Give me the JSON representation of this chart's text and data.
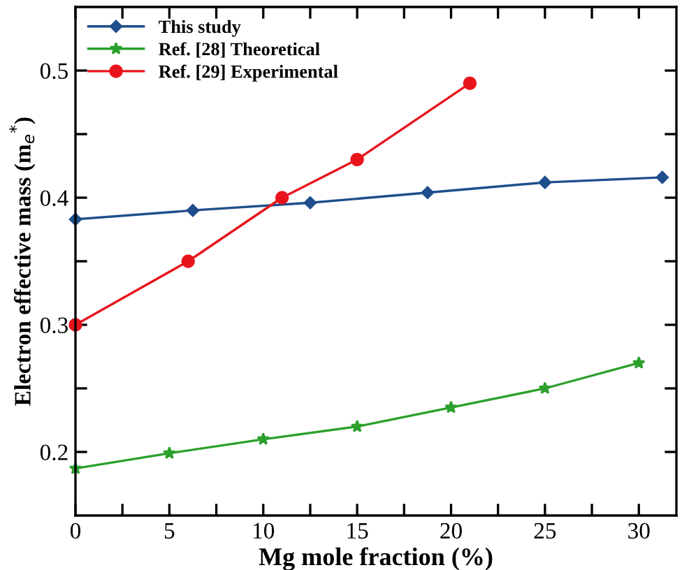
{
  "chart_data": {
    "type": "line",
    "xlabel": "Mg mole fraction (%)",
    "ylabel": "Electron effective mass (m$_{e}$$^{*}$)",
    "series": [
      {
        "name": "This study",
        "color": "#1f4e8c",
        "marker": "diamond",
        "x": [
          0,
          6.25,
          12.5,
          18.75,
          25,
          31.25
        ],
        "values": [
          0.383,
          0.39,
          0.396,
          0.404,
          0.412,
          0.416
        ]
      },
      {
        "name": "Ref. [28] Theoretical",
        "color": "#2ca02c",
        "marker": "star",
        "x": [
          0,
          5,
          10,
          15,
          20,
          25,
          30
        ],
        "values": [
          0.187,
          0.199,
          0.21,
          0.22,
          0.235,
          0.25,
          0.27
        ]
      },
      {
        "name": "Ref. [29] Experimental",
        "color": "#e8141c",
        "marker": "circle",
        "x": [
          0,
          6,
          11,
          15,
          21
        ],
        "values": [
          0.3,
          0.35,
          0.4,
          0.43,
          0.49
        ]
      }
    ],
    "xlim": [
      0,
      32
    ],
    "ylim": [
      0.15,
      0.55
    ],
    "xticks": [
      0,
      {
        "value": 2.5,
        "label": null
      },
      5,
      {
        "value": 7.5,
        "label": null
      },
      10,
      {
        "value": 12.5,
        "label": null
      },
      15,
      {
        "value": 17.5,
        "label": null
      },
      20,
      {
        "value": 22.5,
        "label": null
      },
      25,
      {
        "value": 27.5,
        "label": null
      },
      30
    ],
    "yticks": [
      {
        "value": 0.2,
        "label": "0.2"
      },
      {
        "value": 0.25,
        "label": null
      },
      {
        "value": 0.3,
        "label": "0.3"
      },
      {
        "value": 0.35,
        "label": null
      },
      {
        "value": 0.4,
        "label": "0.4"
      },
      {
        "value": 0.45,
        "label": null
      },
      {
        "value": 0.5,
        "label": "0.5"
      }
    ],
    "legend": "top left",
    "grid": false,
    "line_style": "solid"
  }
}
